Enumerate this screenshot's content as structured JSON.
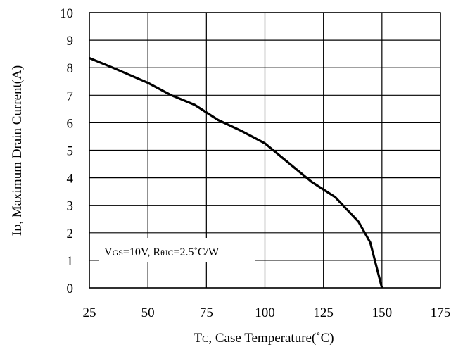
{
  "chart_data": {
    "type": "line",
    "xlabel": {
      "main": "T",
      "sub": "C",
      "rest": ", Case Temperature(˚C)"
    },
    "ylabel": {
      "main": "I",
      "sub": "D",
      "rest": ", Maximum Drain Current(A)"
    },
    "xlim": [
      25,
      175
    ],
    "ylim": [
      0,
      10
    ],
    "xticks": [
      25,
      50,
      75,
      100,
      125,
      150,
      175
    ],
    "yticks": [
      0,
      1,
      2,
      3,
      4,
      5,
      6,
      7,
      8,
      9,
      10
    ],
    "grid": true,
    "annotation": {
      "parts": [
        {
          "t": "V",
          "sub": false
        },
        {
          "t": "GS",
          "sub": true
        },
        {
          "t": "=10V, R",
          "sub": false
        },
        {
          "t": "θJC",
          "sub": true
        },
        {
          "t": "=2.5˚C/W",
          "sub": false
        }
      ]
    },
    "series": [
      {
        "x": [
          25,
          35,
          50,
          60,
          70,
          80,
          90,
          100,
          110,
          120,
          130,
          140,
          145,
          150
        ],
        "y": [
          8.35,
          8.0,
          7.45,
          7.0,
          6.65,
          6.1,
          5.7,
          5.25,
          4.55,
          3.85,
          3.3,
          2.4,
          1.65,
          0
        ]
      }
    ]
  }
}
